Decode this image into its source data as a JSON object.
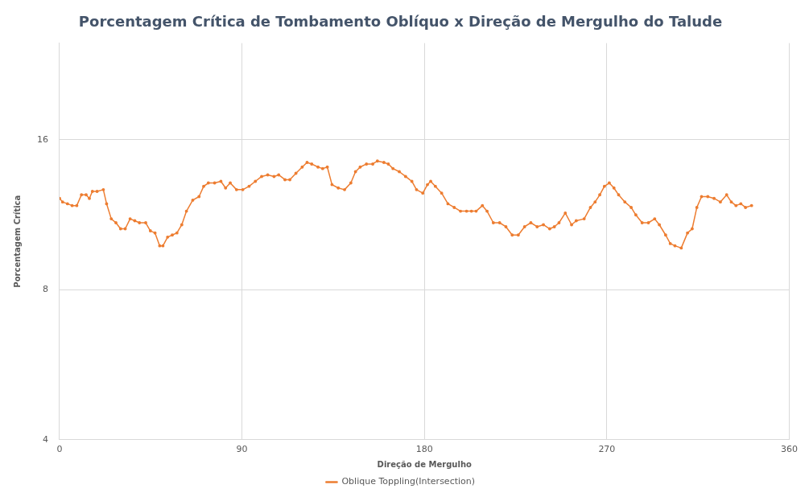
{
  "chart_data": {
    "type": "line",
    "title": "Porcentagem Crítica de Tombamento Oblíquo x Direção de Mergulho do Talude",
    "xlabel": "Direção de Mergulho",
    "ylabel": "Porcentagem Crítica",
    "x": [
      0,
      1.5,
      3.9,
      6.2,
      8.5,
      10.8,
      13.1,
      14.7,
      16.2,
      18.5,
      21.6,
      23.2,
      25.5,
      27.8,
      30.1,
      32.4,
      34.8,
      37.1,
      39.4,
      42.5,
      44.8,
      47.1,
      49.4,
      51.0,
      53.3,
      55.6,
      57.9,
      60.3,
      62.6,
      65.7,
      68.8,
      71.1,
      73.4,
      76.5,
      79.6,
      81.9,
      84.2,
      87.3,
      90.4,
      93.5,
      96.6,
      99.7,
      102.7,
      105.8,
      108.1,
      111.2,
      113.6,
      116.6,
      119.7,
      122.1,
      124.4,
      127.5,
      129.8,
      132.1,
      134.4,
      137.5,
      140.6,
      143.7,
      146.0,
      148.3,
      151.4,
      154.5,
      156.8,
      160.0,
      162.2,
      164.5,
      167.6,
      170.7,
      173.8,
      176.1,
      179.2,
      181.5,
      183.1,
      185.4,
      188.5,
      191.6,
      194.7,
      197.8,
      200.8,
      203.2,
      205.5,
      208.6,
      210.9,
      214.0,
      217.1,
      220.2,
      223.3,
      226.3,
      229.4,
      232.5,
      235.6,
      238.7,
      241.8,
      244.1,
      246.4,
      249.5,
      252.6,
      254.9,
      258.8,
      261.9,
      264.2,
      266.5,
      268.8,
      271.2,
      273.5,
      275.8,
      278.9,
      282.0,
      284.3,
      287.4,
      290.5,
      293.6,
      295.9,
      299.0,
      301.3,
      303.6,
      306.7,
      309.8,
      312.1,
      314.4,
      316.7,
      319.8,
      322.9,
      326.0,
      329.1,
      331.4,
      333.7,
      336.1,
      338.4,
      341.4
    ],
    "series": [
      {
        "name": "Oblique Toppling(Intersection)",
        "color": "#ed7d31",
        "values": [
          12.2,
          12.0,
          11.9,
          11.8,
          11.8,
          12.4,
          12.4,
          12.2,
          12.6,
          12.6,
          12.7,
          11.9,
          11.1,
          10.9,
          10.6,
          10.6,
          11.1,
          11.0,
          10.9,
          10.9,
          10.5,
          10.4,
          9.8,
          9.8,
          10.2,
          10.3,
          10.4,
          10.8,
          11.5,
          12.1,
          12.3,
          12.9,
          13.1,
          13.1,
          13.2,
          12.8,
          13.1,
          12.7,
          12.7,
          12.9,
          13.2,
          13.5,
          13.6,
          13.5,
          13.6,
          13.3,
          13.3,
          13.7,
          14.1,
          14.4,
          14.3,
          14.1,
          14.0,
          14.1,
          13.0,
          12.8,
          12.7,
          13.1,
          13.8,
          14.1,
          14.3,
          14.3,
          14.5,
          14.4,
          14.3,
          14.0,
          13.8,
          13.5,
          13.2,
          12.7,
          12.5,
          13.0,
          13.2,
          12.9,
          12.5,
          11.9,
          11.7,
          11.5,
          11.5,
          11.5,
          11.5,
          11.8,
          11.5,
          10.9,
          10.9,
          10.7,
          10.3,
          10.3,
          10.7,
          10.9,
          10.7,
          10.8,
          10.6,
          10.7,
          10.9,
          11.4,
          10.8,
          11.0,
          11.1,
          11.7,
          12.0,
          12.4,
          12.9,
          13.1,
          12.8,
          12.4,
          12.0,
          11.7,
          11.3,
          10.9,
          10.9,
          11.1,
          10.8,
          10.3,
          9.9,
          9.8,
          9.7,
          10.4,
          10.6,
          11.7,
          12.3,
          12.3,
          12.2,
          12.0,
          12.4,
          12.0,
          11.8,
          11.9,
          11.7,
          11.8
        ]
      }
    ],
    "xlim": [
      0,
      360
    ],
    "xticks": [
      0,
      90,
      180,
      270,
      360
    ],
    "ylim": [
      4,
      25
    ],
    "yticks": [
      4,
      8,
      16
    ],
    "log": "y",
    "grid": true,
    "legend": "bottom",
    "marker": "circle",
    "line_style": "solid"
  }
}
